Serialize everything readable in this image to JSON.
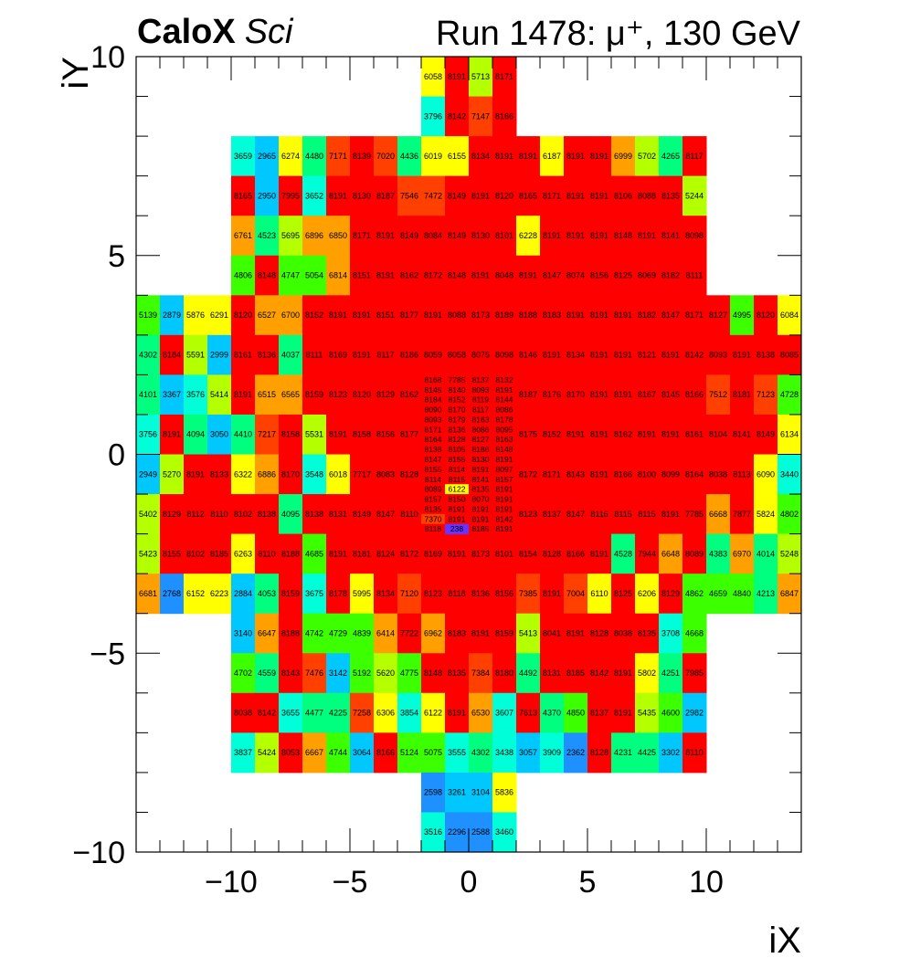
{
  "header": {
    "brand": "CaloX",
    "subtitle": "Sci",
    "run_label": "Run 1478:   μ⁺, 130 GeV"
  },
  "colors": {
    "background": "#ffffff",
    "axis": "#000000",
    "palette": [
      "#1e90ff",
      "#00c8ff",
      "#00ffd8",
      "#00ff7f",
      "#3cff00",
      "#b4ff00",
      "#ffff00",
      "#ff9f00",
      "#ff4000",
      "#ff0000"
    ],
    "low_outlier": "#6633ff"
  },
  "chart_data": {
    "type": "heatmap",
    "title": "Run 1478:   μ⁺, 130 GeV",
    "xlabel": "iX",
    "ylabel": "iY",
    "xlim": [
      -14,
      14
    ],
    "ylim": [
      -10,
      10
    ],
    "xticks": [
      "−10",
      "−5",
      "0",
      "5",
      "10"
    ],
    "xtick_values": [
      -10,
      -5,
      0,
      5,
      10
    ],
    "yticks": [
      "−10",
      "−5",
      "0",
      "5",
      "10"
    ],
    "ytick_values": [
      -10,
      -5,
      0,
      5,
      10
    ],
    "color_range": [
      2200,
      8200
    ],
    "grid": false,
    "rows": [
      {
        "y": 9.5,
        "x0": -2,
        "cells": [
          6058,
          8191,
          5713,
          8171
        ]
      },
      {
        "y": 8.5,
        "x0": -2,
        "cells": [
          3796,
          8142,
          7147,
          8166
        ]
      },
      {
        "y": 7.5,
        "x0": -10,
        "cells": [
          3659,
          2965,
          6274,
          4480,
          7171,
          8139,
          7020,
          4436,
          6019,
          6155,
          8134,
          8191,
          8191,
          6187,
          8191,
          8191,
          6999,
          5702,
          4265,
          8117
        ]
      },
      {
        "y": 6.5,
        "x0": -10,
        "cells": [
          8165,
          2950,
          7995,
          3652,
          8191,
          8130,
          8187,
          7546,
          7472,
          8149,
          8191,
          8120,
          8165,
          8171,
          8191,
          8191,
          8106,
          8088,
          8135,
          5244
        ]
      },
      {
        "y": 5.5,
        "x0": -10,
        "cells": [
          6761,
          4523,
          5695,
          6896,
          6850,
          8171,
          8191,
          8149,
          8084,
          8149,
          8130,
          8101,
          6228,
          8191,
          8191,
          8191,
          8148,
          8191,
          8141,
          8098
        ]
      },
      {
        "y": 4.5,
        "x0": -10,
        "cells": [
          4806,
          8148,
          4747,
          5054,
          6814,
          8151,
          8191,
          8162,
          8172,
          8148,
          8191,
          8048,
          8191,
          8147,
          8074,
          8156,
          8125,
          8069,
          8182,
          8111
        ]
      },
      {
        "y": 3.5,
        "x0": -14,
        "cells": [
          5139,
          2879,
          5876,
          6291,
          8120,
          6527,
          6700,
          8152,
          8191,
          8191,
          8151,
          8177,
          8191,
          8088,
          8173,
          8189,
          8188,
          8183,
          8191,
          8191,
          8191,
          8182,
          8147,
          8171,
          8127,
          4995,
          8120,
          6084
        ]
      },
      {
        "y": 2.5,
        "x0": -14,
        "cells": [
          4302,
          8184,
          5591,
          2999,
          8161,
          8136,
          4037,
          8111,
          8169,
          8191,
          8117,
          8186,
          8059,
          8058,
          8075,
          8098,
          8146,
          8191,
          8134,
          8191,
          8191,
          8121,
          8191,
          8142,
          8093,
          8191,
          8138,
          8085
        ]
      },
      {
        "y": 1.5,
        "x0": -14,
        "cells": [
          4101,
          3367,
          3576,
          5414,
          8191,
          6515,
          6565,
          8159,
          8123,
          8120,
          8129,
          8162,
          8168,
          7785,
          8137,
          8132,
          8187,
          8176,
          8170,
          8191,
          8191,
          8167,
          8145,
          8166,
          7512,
          8181,
          7123,
          4728
        ],
        "sub_rows": {
          "8145": [
            8145,
            8140,
            8093,
            8191
          ],
          "8184": [
            8184,
            8152,
            8119,
            8144
          ]
        }
      },
      {
        "y": 0.5,
        "x0": -14,
        "cells": [
          3756,
          8191,
          4094,
          3050,
          4410,
          7217,
          8158,
          5531,
          8191,
          8158,
          8156,
          8177,
          8090,
          8170,
          8117,
          8086,
          8175,
          8152,
          8191,
          8191,
          8162,
          8191,
          8191,
          8161,
          8104,
          8141,
          8149,
          6134
        ]
      },
      {
        "y": -0.5,
        "x0": -14,
        "cells": [
          2949,
          5270,
          8191,
          8133,
          6322,
          6886,
          8170,
          3548,
          6018,
          7717,
          8083,
          8128,
          8147,
          8155,
          8130,
          8191,
          8172,
          8171,
          8143,
          8191,
          8166,
          8100,
          8099,
          8164,
          8038,
          8113,
          6090,
          3440
        ]
      },
      {
        "y": -1.5,
        "x0": -14,
        "cells": [
          5402,
          8129,
          8112,
          8110,
          8102,
          8138,
          4095,
          8138,
          8131,
          8149,
          8147,
          8110,
          8157,
          8150,
          8070,
          8191,
          8123,
          8137,
          8147,
          8116,
          8115,
          8115,
          8191,
          7785,
          6668,
          7877,
          5824,
          4802
        ]
      },
      {
        "y": -2.5,
        "x0": -14,
        "cells": [
          5423,
          8155,
          8102,
          8185,
          6263,
          8110,
          8188,
          4685,
          8191,
          8181,
          8124,
          8172,
          8169,
          8191,
          8173,
          8101,
          8154,
          8128,
          8166,
          8191,
          4528,
          7944,
          6648,
          8089,
          4383,
          6970,
          4014,
          5248
        ]
      },
      {
        "y": -3.5,
        "x0": -14,
        "cells": [
          6681,
          2768,
          6152,
          6223,
          2884,
          4053,
          8159,
          3675,
          8178,
          5995,
          8134,
          7120,
          8123,
          8118,
          8136,
          8156,
          7385,
          8191,
          7004,
          6110,
          8125,
          6206,
          8129,
          4862,
          4659,
          4840,
          4213,
          6847
        ]
      },
      {
        "y": -4.5,
        "x0": -10,
        "cells": [
          3140,
          6647,
          8188,
          4742,
          4729,
          4839,
          6414,
          7722,
          6962,
          8183,
          8191,
          8159,
          5413,
          8041,
          8191,
          8128,
          8038,
          8135,
          3708,
          4668
        ]
      },
      {
        "y": -5.5,
        "x0": -10,
        "cells": [
          4702,
          4559,
          8143,
          7476,
          3142,
          5192,
          5620,
          4775,
          8148,
          8135,
          7384,
          8180,
          4492,
          8131,
          8185,
          8142,
          8191,
          5802,
          4251,
          7985
        ]
      },
      {
        "y": -6.5,
        "x0": -10,
        "cells": [
          8038,
          8142,
          3655,
          4477,
          4225,
          7258,
          6306,
          3854,
          6122,
          8191,
          6530,
          3607,
          7613,
          4370,
          4850,
          8137,
          8191,
          5435,
          4600,
          2982
        ]
      },
      {
        "y": -7.5,
        "x0": -10,
        "cells": [
          3837,
          5424,
          8053,
          6667,
          4744,
          3064,
          8166,
          5124,
          5075,
          3555,
          4302,
          3438,
          3057,
          3909,
          2362,
          8128,
          4231,
          4425,
          3302,
          8110
        ]
      },
      {
        "y": -8.5,
        "x0": -2,
        "cells": [
          2598,
          3261,
          3104,
          5836
        ]
      },
      {
        "y": -9.5,
        "x0": -2,
        "cells": [
          3516,
          2296,
          2588,
          3460
        ]
      }
    ],
    "center_block": {
      "x0": -2,
      "y_top": 2,
      "sub_rows_per_cell": 4,
      "lines": [
        [
          8168,
          7785,
          8137,
          8132
        ],
        [
          8145,
          8140,
          8093,
          8191
        ],
        [
          8184,
          8152,
          8119,
          8144
        ],
        [
          8090,
          8170,
          8117,
          8086
        ],
        [
          8093,
          8179,
          8163,
          8178
        ],
        [
          8171,
          8136,
          8086,
          8095
        ],
        [
          8164,
          8128,
          8127,
          8163
        ],
        [
          8138,
          8105,
          8186,
          8148
        ],
        [
          8147,
          8155,
          8130,
          8191
        ],
        [
          8155,
          8114,
          8191,
          8097
        ],
        [
          8114,
          8115,
          8141,
          8157
        ],
        [
          8089,
          6122,
          8135,
          8191
        ],
        [
          8157,
          8150,
          8070,
          8191
        ],
        [
          8135,
          8191,
          8191,
          8191
        ],
        [
          7370,
          8191,
          8191,
          8142
        ],
        [
          8118,
          238,
          8185,
          8191
        ]
      ]
    }
  }
}
